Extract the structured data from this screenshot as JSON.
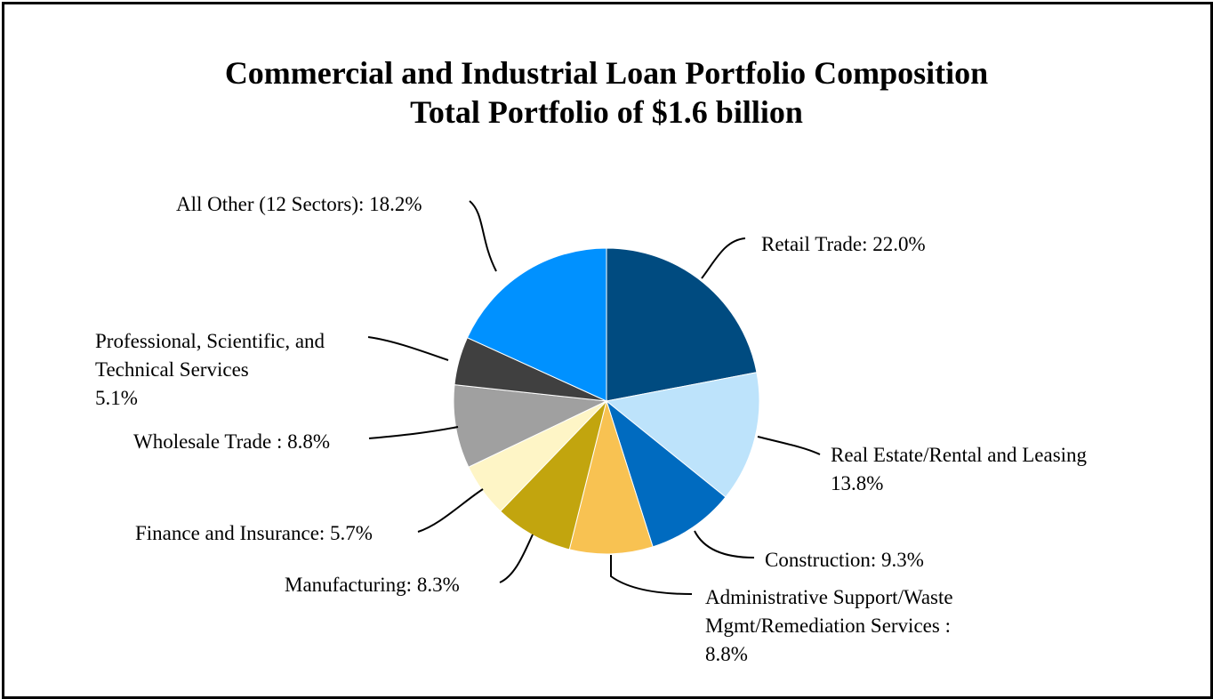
{
  "chart_data": {
    "type": "pie",
    "title": "Commercial and Industrial Loan Portfolio Composition",
    "subtitle": "Total Portfolio of $1.6 billion",
    "slices": [
      {
        "name": "Retail Trade",
        "value": 22.0,
        "color": "#004B80",
        "label_lines": [
          "Retail Trade: 22.0%"
        ]
      },
      {
        "name": "Real Estate/Rental and Leasing",
        "value": 13.8,
        "color": "#BDE3FB",
        "label_lines": [
          "Real Estate/Rental and Leasing",
          "13.8%"
        ]
      },
      {
        "name": "Construction",
        "value": 9.3,
        "color": "#006BC0",
        "label_lines": [
          "Construction: 9.3%"
        ]
      },
      {
        "name": "Administrative Support/Waste Mgmt/Remediation Services",
        "value": 8.8,
        "color": "#F8C252",
        "label_lines": [
          "Administrative Support/Waste",
          "Mgmt/Remediation Services :",
          "8.8%"
        ]
      },
      {
        "name": "Manufacturing",
        "value": 8.3,
        "color": "#C2A50E",
        "label_lines": [
          "Manufacturing: 8.3%"
        ]
      },
      {
        "name": "Finance and Insurance",
        "value": 5.7,
        "color": "#FEF5C6",
        "label_lines": [
          "Finance and Insurance: 5.7%"
        ]
      },
      {
        "name": "Wholesale Trade",
        "value": 8.8,
        "color": "#A0A0A0",
        "label_lines": [
          "Wholesale Trade : 8.8%"
        ]
      },
      {
        "name": "Professional, Scientific, and Technical Services",
        "value": 5.1,
        "color": "#404040",
        "label_lines": [
          "Professional, Scientific, and",
          "Technical Services",
          "5.1%"
        ]
      },
      {
        "name": "All Other (12 Sectors)",
        "value": 18.2,
        "color": "#0091FF",
        "label_lines": [
          "All Other (12 Sectors): 18.2%"
        ]
      }
    ]
  }
}
